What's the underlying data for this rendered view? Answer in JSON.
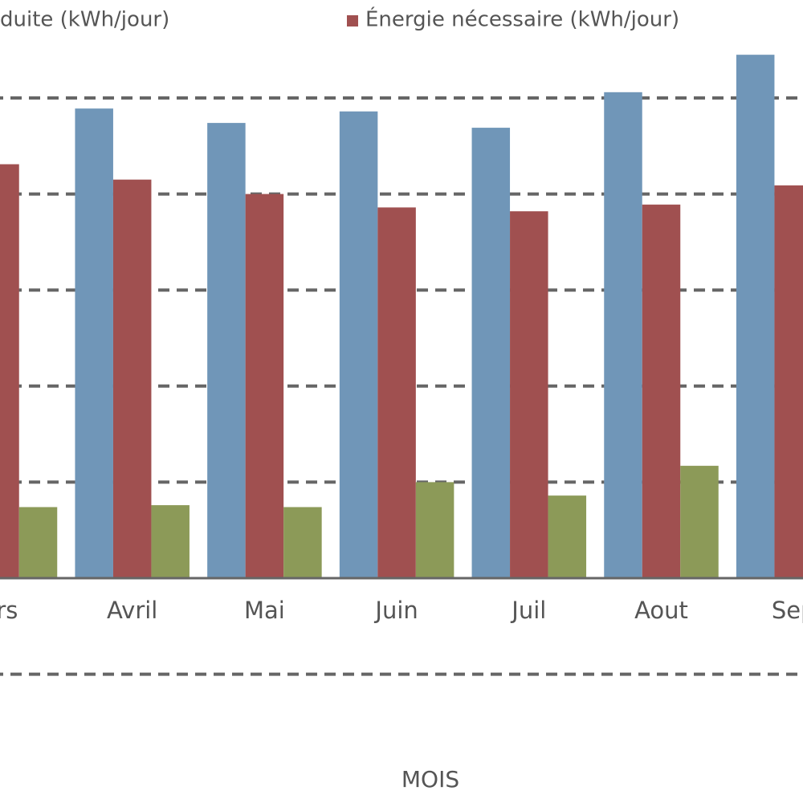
{
  "chart_data": {
    "type": "bar",
    "x_label": "MOIS",
    "categories": [
      "ars",
      "Avril",
      "Mai",
      "Juin",
      "Juil",
      "Aout",
      "Sep"
    ],
    "series": [
      {
        "name": "duite (kWh/jour)",
        "color": "#7096b8",
        "values": [
          null,
          4.89,
          4.74,
          4.86,
          4.69,
          5.06,
          5.45
        ]
      },
      {
        "name": "Énergie nécessaire (kWh/jour)",
        "color": "#a05050",
        "values": [
          4.31,
          4.15,
          4.0,
          3.86,
          3.82,
          3.89,
          4.09
        ]
      },
      {
        "color": "#8c9a58",
        "values": [
          0.74,
          0.76,
          0.74,
          1.0,
          0.86,
          1.17,
          null
        ]
      }
    ],
    "ylim": [
      -1,
      6
    ],
    "yticks": [
      -1,
      0,
      1,
      2,
      3,
      4,
      5
    ],
    "grid": true
  }
}
